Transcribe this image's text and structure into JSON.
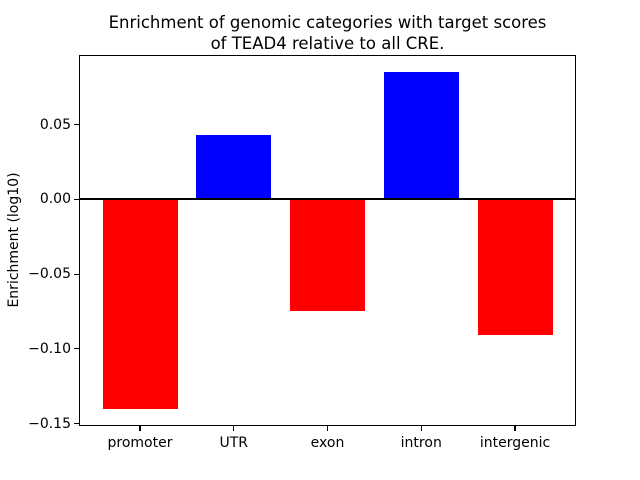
{
  "chart_data": {
    "type": "bar",
    "title": "Enrichment of genomic categories with target scores\nof TEAD4 relative to all CRE.",
    "title_lines": [
      "Enrichment of genomic categories with target scores",
      "of TEAD4 relative to all CRE."
    ],
    "xlabel": "",
    "ylabel": "Enrichment (log10)",
    "categories": [
      "promoter",
      "UTR",
      "exon",
      "intron",
      "intergenic"
    ],
    "values": [
      -0.14,
      0.043,
      -0.075,
      0.085,
      -0.091
    ],
    "positive_color": "#0000ff",
    "negative_color": "#ff0000",
    "yticks": [
      0.05,
      0.0,
      -0.05,
      -0.1,
      -0.15
    ],
    "ytick_labels": [
      "0.05",
      "0.00",
      "−0.05",
      "−0.10",
      "−0.15"
    ],
    "ylim": [
      -0.151,
      0.096
    ],
    "xlim": [
      -0.64,
      4.64
    ],
    "bar_width": 0.8,
    "grid": false,
    "zero_line": true,
    "legend_position": "none",
    "axis_color": "#000000",
    "background_color": "#ffffff"
  }
}
